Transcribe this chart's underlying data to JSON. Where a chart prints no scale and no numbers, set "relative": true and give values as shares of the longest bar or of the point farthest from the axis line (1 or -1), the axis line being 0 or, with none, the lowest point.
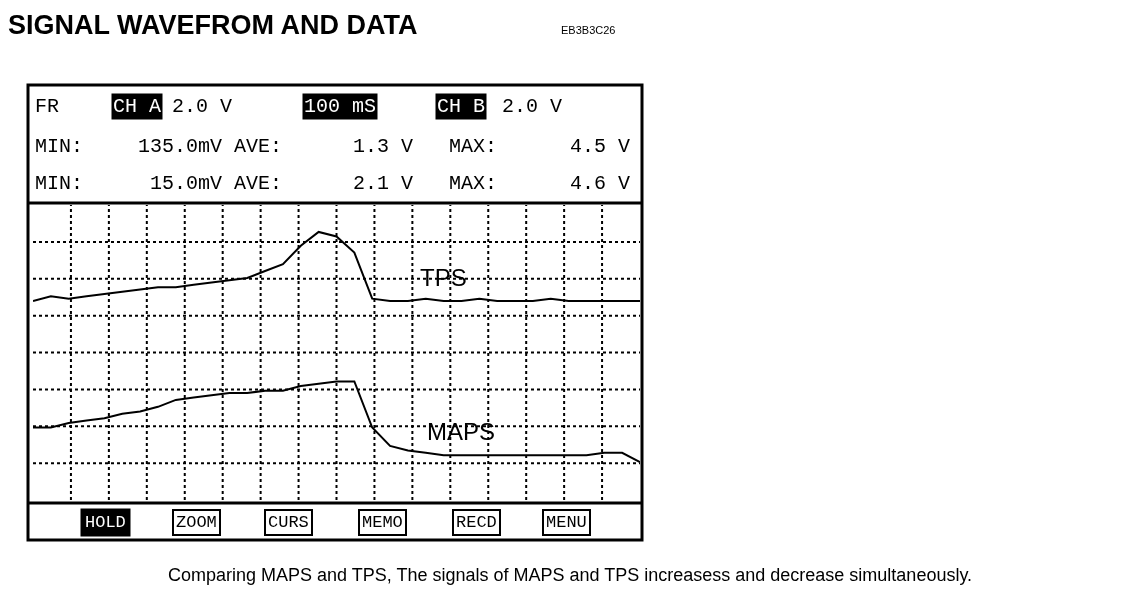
{
  "chart_data": {
    "type": "line",
    "title": "SIGNAL WAVEFROM AND DATA",
    "relative": true,
    "grid": true,
    "legend": false,
    "marker": "none",
    "line_style": "solid",
    "categories": [
      null,
      null,
      null,
      null,
      null,
      null,
      null,
      null,
      null,
      null,
      null,
      null,
      null,
      null,
      null,
      null,
      null,
      null,
      null,
      null,
      null,
      null,
      null,
      null,
      null,
      null,
      null,
      null,
      null,
      null,
      null,
      null,
      null,
      null,
      null
    ],
    "series": [
      {
        "name": "TPS",
        "color": "#000000",
        "values": [
          0.7,
          0.72,
          0.71,
          0.72,
          0.73,
          0.74,
          0.75,
          0.76,
          0.76,
          0.77,
          0.78,
          0.79,
          0.8,
          0.83,
          0.86,
          0.94,
          1.0,
          0.98,
          0.91,
          0.71,
          0.7,
          0.7,
          0.71,
          0.7,
          0.7,
          0.71,
          0.7,
          0.7,
          0.7,
          0.71,
          0.7,
          0.7,
          0.7,
          0.7,
          0.7
        ]
      },
      {
        "name": "MAPS",
        "color": "#000000",
        "values": [
          0.15,
          0.15,
          0.17,
          0.18,
          0.19,
          0.21,
          0.22,
          0.24,
          0.27,
          0.28,
          0.29,
          0.3,
          0.3,
          0.31,
          0.31,
          0.33,
          0.34,
          0.35,
          0.35,
          0.15,
          0.07,
          0.05,
          0.04,
          0.03,
          0.03,
          0.03,
          0.03,
          0.03,
          0.03,
          0.03,
          0.03,
          0.03,
          0.04,
          0.04,
          0.0
        ]
      }
    ],
    "annotations": [
      "EB3B3C26",
      "FR",
      "CH A",
      "2.0 V",
      "100 mS",
      "CH B",
      "2.0 V",
      "MIN:",
      "135.0mV",
      "AVE:",
      "1.3 V",
      "MAX:",
      "4.5 V",
      "MIN:",
      "15.0mV",
      "AVE:",
      "2.1 V",
      "MAX:",
      "4.6 V",
      "HOLD",
      "ZOOM",
      "CURS",
      "MEMO",
      "RECD",
      "MENU",
      "Comparing MAPS and TPS, The signals of MAPS and TPS increasess and decrease simultaneously."
    ]
  }
}
